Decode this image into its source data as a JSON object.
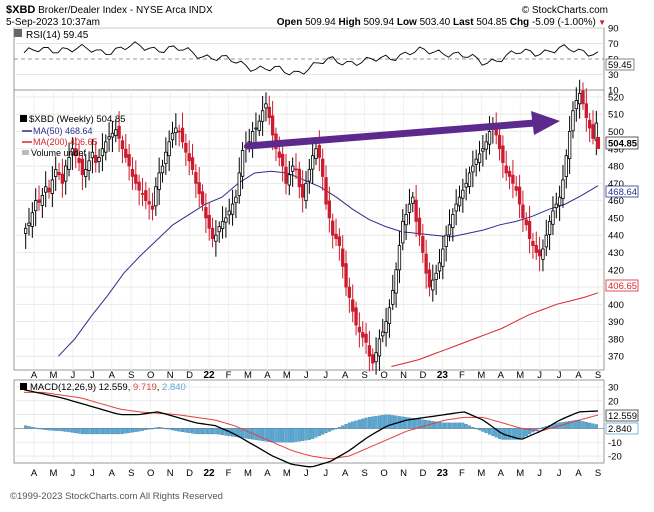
{
  "header": {
    "symbol": "$XBD",
    "name": "Broker/Dealer Index - NYSE Arca INDX",
    "brand": "© StockCharts.com",
    "date": "5-Sep-2023 10:37am",
    "quote": [
      {
        "label": "Open",
        "value": "509.94"
      },
      {
        "label": "High",
        "value": "509.94"
      },
      {
        "label": "Low",
        "value": "503.40"
      },
      {
        "label": "Last",
        "value": "504.85"
      },
      {
        "label": "Chg",
        "value": "-5.09 (-1.00%)"
      }
    ],
    "chg_arrow": "▼"
  },
  "rsi_panel": {
    "legend": "RSI(14) 59.45",
    "value_badge": "59.45",
    "ticks": [
      "90",
      "70",
      "50",
      "30",
      "10"
    ]
  },
  "price_panel": {
    "legend": {
      "price": "$XBD (Weekly) 504.85",
      "ma50": "MA(50) 468.64",
      "ma200": "MA(200) 406.65",
      "volume": "Volume undef"
    },
    "badges": {
      "last": "504.85",
      "ma50": "468.64",
      "ma200": "406.65"
    },
    "ticks": [
      "520",
      "510",
      "500",
      "490",
      "480",
      "470",
      "460",
      "450",
      "440",
      "430",
      "420",
      "410",
      "400",
      "390",
      "380",
      "370"
    ]
  },
  "macd_panel": {
    "legend_prefix": "MACD(12,26,9)",
    "legend_values": [
      "12.559",
      "9.719",
      "2.840"
    ],
    "badges": {
      "macd": "12.559",
      "hist": "2.840"
    },
    "ticks": [
      "30",
      "20",
      "10",
      "0",
      "-10",
      "-20"
    ]
  },
  "time_axis": {
    "labels": [
      "A",
      "M",
      "J",
      "J",
      "A",
      "S",
      "O",
      "N",
      "D",
      "22",
      "F",
      "M",
      "A",
      "M",
      "J",
      "J",
      "A",
      "S",
      "O",
      "N",
      "D",
      "23",
      "F",
      "M",
      "A",
      "M",
      "J",
      "J",
      "A",
      "S"
    ]
  },
  "copyright": "©1999-2023 StockCharts.com All Rights Reserved",
  "colors": {
    "up_candle": "#000000",
    "down_candle": "#cc1c2e",
    "ma50": "#2b2f8f",
    "ma200": "#d9252c",
    "signal": "#e0413d",
    "histogram": "#5aa9d6",
    "annotation_arrow": "#5b2a8c"
  },
  "chart_data": [
    {
      "type": "line",
      "title": "RSI(14)",
      "x": [
        "Apr 2021",
        "Jun 2021",
        "Aug 2021",
        "Oct 2021",
        "Dec 2021",
        "Feb 2022",
        "Apr 2022",
        "Jun 2022",
        "Aug 2022",
        "Oct 2022",
        "Dec 2022",
        "Feb 2023",
        "Apr 2023",
        "Jun 2023",
        "Aug 2023",
        "Sep 2023"
      ],
      "series": [
        {
          "name": "RSI(14)",
          "values": [
            58,
            64,
            60,
            66,
            62,
            52,
            40,
            32,
            48,
            46,
            58,
            60,
            46,
            58,
            62,
            59.45
          ]
        }
      ],
      "ylim": [
        10,
        90
      ],
      "reference_lines": [
        30,
        50,
        70
      ]
    },
    {
      "type": "bar",
      "title": "$XBD (Weekly) 504.85",
      "x_axis": "weekly, Apr 2021 – Sep 2023",
      "weekly_close": [
        444,
        447,
        453,
        460,
        459,
        463,
        468,
        465,
        472,
        478,
        475,
        470,
        480,
        485,
        490,
        486,
        482,
        475,
        478,
        483,
        488,
        482,
        485,
        490,
        494,
        497,
        499,
        501,
        496,
        490,
        485,
        480,
        474,
        470,
        466,
        464,
        460,
        458,
        455,
        468,
        476,
        480,
        488,
        494,
        499,
        502,
        500,
        494,
        488,
        483,
        478,
        470,
        464,
        458,
        450,
        444,
        438,
        440,
        445,
        448,
        450,
        454,
        458,
        462,
        476,
        489,
        492,
        494,
        500,
        502,
        506,
        512,
        516,
        508,
        498,
        490,
        485,
        480,
        470,
        475,
        480,
        478,
        468,
        462,
        470,
        478,
        486,
        490,
        485,
        474,
        458,
        450,
        440,
        438,
        434,
        422,
        410,
        404,
        396,
        388,
        384,
        381,
        378,
        370,
        366,
        372,
        380,
        384,
        390,
        398,
        408,
        420,
        434,
        448,
        452,
        458,
        462,
        448,
        440,
        430,
        418,
        410,
        414,
        418,
        424,
        432,
        440,
        446,
        452,
        458,
        462,
        466,
        470,
        476,
        480,
        484,
        487,
        490,
        494,
        500,
        504,
        498,
        490,
        482,
        476,
        474,
        470,
        466,
        458,
        450,
        446,
        438,
        434,
        430,
        428,
        432,
        440,
        448,
        454,
        458,
        462,
        472,
        486,
        500,
        512,
        518,
        522,
        516,
        508,
        502,
        496,
        504.85
      ],
      "moving_averages": [
        {
          "name": "MA(50)",
          "last": 468.64,
          "values": [
            370,
            380,
            393,
            405,
            418,
            428,
            437,
            446,
            452,
            458,
            462,
            470,
            476,
            477,
            476,
            472,
            468,
            462,
            455,
            449,
            445,
            442,
            441,
            440,
            439,
            441,
            443,
            446,
            448,
            451,
            455,
            458,
            463,
            468.64
          ]
        },
        {
          "name": "MA(200)",
          "last": 406.65,
          "values": [
            364,
            366,
            368,
            371,
            374,
            377,
            380,
            383,
            386,
            390,
            394,
            397,
            400,
            402,
            404,
            406.65
          ]
        }
      ],
      "ylim": [
        362,
        524
      ],
      "annotation": "purple trend arrow drawn from Feb 2022 highs toward Aug 2023 highs"
    },
    {
      "type": "line",
      "title": "MACD(12,26,9) 12.559, 9.719, 2.840",
      "series": [
        {
          "name": "MACD",
          "last": 12.559,
          "values": [
            28,
            25,
            22,
            18,
            14,
            10,
            10,
            12,
            8,
            4,
            2,
            -4,
            -12,
            -20,
            -26,
            -28,
            -24,
            -16,
            -6,
            2,
            6,
            8,
            10,
            12,
            6,
            -4,
            -8,
            -2,
            6,
            12,
            12.559
          ]
        },
        {
          "name": "Signal",
          "last": 9.719,
          "values": [
            26,
            26,
            24,
            22,
            18,
            14,
            12,
            11,
            10,
            8,
            6,
            2,
            -4,
            -10,
            -16,
            -20,
            -22,
            -20,
            -14,
            -8,
            -2,
            2,
            6,
            8,
            8,
            4,
            0,
            -2,
            2,
            6,
            9.719
          ]
        },
        {
          "name": "Histogram",
          "last": 2.84,
          "values": [
            2,
            -1,
            -2,
            -4,
            -4,
            -4,
            -2,
            1,
            -2,
            -4,
            -4,
            -6,
            -8,
            -10,
            -10,
            -8,
            -2,
            4,
            8,
            10,
            8,
            6,
            4,
            4,
            -2,
            -8,
            -8,
            0,
            4,
            6,
            2.84
          ]
        }
      ],
      "ylim": [
        -25,
        35
      ]
    }
  ]
}
